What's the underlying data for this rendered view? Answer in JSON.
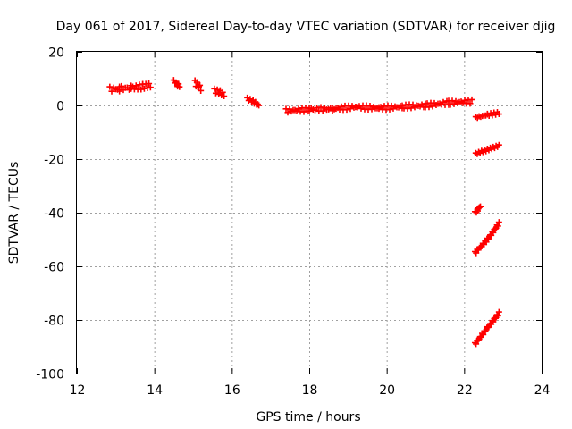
{
  "chart_data": {
    "type": "scatter",
    "title": "Day 061 of 2017, Sidereal Day-to-day VTEC variation (SDTVAR) for receiver djig",
    "xlabel": "GPS time / hours",
    "ylabel": "SDTVAR / TECUs",
    "xlim": [
      12,
      24
    ],
    "ylim": [
      -100,
      20
    ],
    "x_ticks": [
      12,
      14,
      16,
      18,
      20,
      22,
      24
    ],
    "y_ticks": [
      -100,
      -80,
      -60,
      -40,
      -20,
      0,
      20
    ],
    "x_tick_labels": [
      "12",
      "14",
      "16",
      "18",
      "20",
      "22",
      "24"
    ],
    "y_tick_labels": [
      "-100",
      "-80",
      "-60",
      "-40",
      "-20",
      "0",
      "20"
    ],
    "grid": true,
    "marker": "plus",
    "color": "#ff0000",
    "series": [
      {
        "segments": [
          {
            "x": [
              12.85,
              13.1,
              13.4,
              13.7,
              13.9
            ],
            "y": [
              6.0,
              6.3,
              6.5,
              7.0,
              7.5
            ],
            "spread": 2.0
          },
          {
            "x": [
              14.5,
              14.6,
              14.65
            ],
            "y": [
              9.0,
              8.0,
              7.0
            ],
            "spread": 2.0
          },
          {
            "x": [
              15.05,
              15.15,
              15.2
            ],
            "y": [
              8.5,
              7.0,
              6.5
            ],
            "spread": 2.0
          },
          {
            "x": [
              15.55,
              15.7,
              15.8
            ],
            "y": [
              5.5,
              4.8,
              4.0
            ],
            "spread": 1.6
          },
          {
            "x": [
              16.4,
              16.55,
              16.7
            ],
            "y": [
              2.5,
              1.5,
              0.0
            ],
            "spread": 1.0
          },
          {
            "x": [
              17.4,
              18.0,
              18.6,
              19.2,
              19.8,
              20.4,
              21.0,
              21.6,
              22.2
            ],
            "y": [
              -2.0,
              -1.5,
              -1.3,
              -0.5,
              -1.0,
              -0.5,
              0.0,
              1.0,
              1.5
            ],
            "spread": 1.5
          },
          {
            "x": [
              22.3,
              22.6,
              22.9
            ],
            "y": [
              -4.5,
              -3.5,
              -2.8
            ],
            "spread": 0.9
          },
          {
            "x": [
              22.3,
              22.6,
              22.9
            ],
            "y": [
              -18.0,
              -16.5,
              -15.0
            ],
            "spread": 0.8
          },
          {
            "x": [
              22.28,
              22.35,
              22.42
            ],
            "y": [
              -40.0,
              -39.0,
              -37.5
            ],
            "spread": 0.8
          },
          {
            "x": [
              22.28,
              22.6,
              22.9
            ],
            "y": [
              -55.0,
              -50.0,
              -44.0
            ],
            "spread": 1.0
          },
          {
            "x": [
              22.28,
              22.6,
              22.9
            ],
            "y": [
              -89.0,
              -83.0,
              -77.5
            ],
            "spread": 1.0
          }
        ]
      }
    ]
  }
}
